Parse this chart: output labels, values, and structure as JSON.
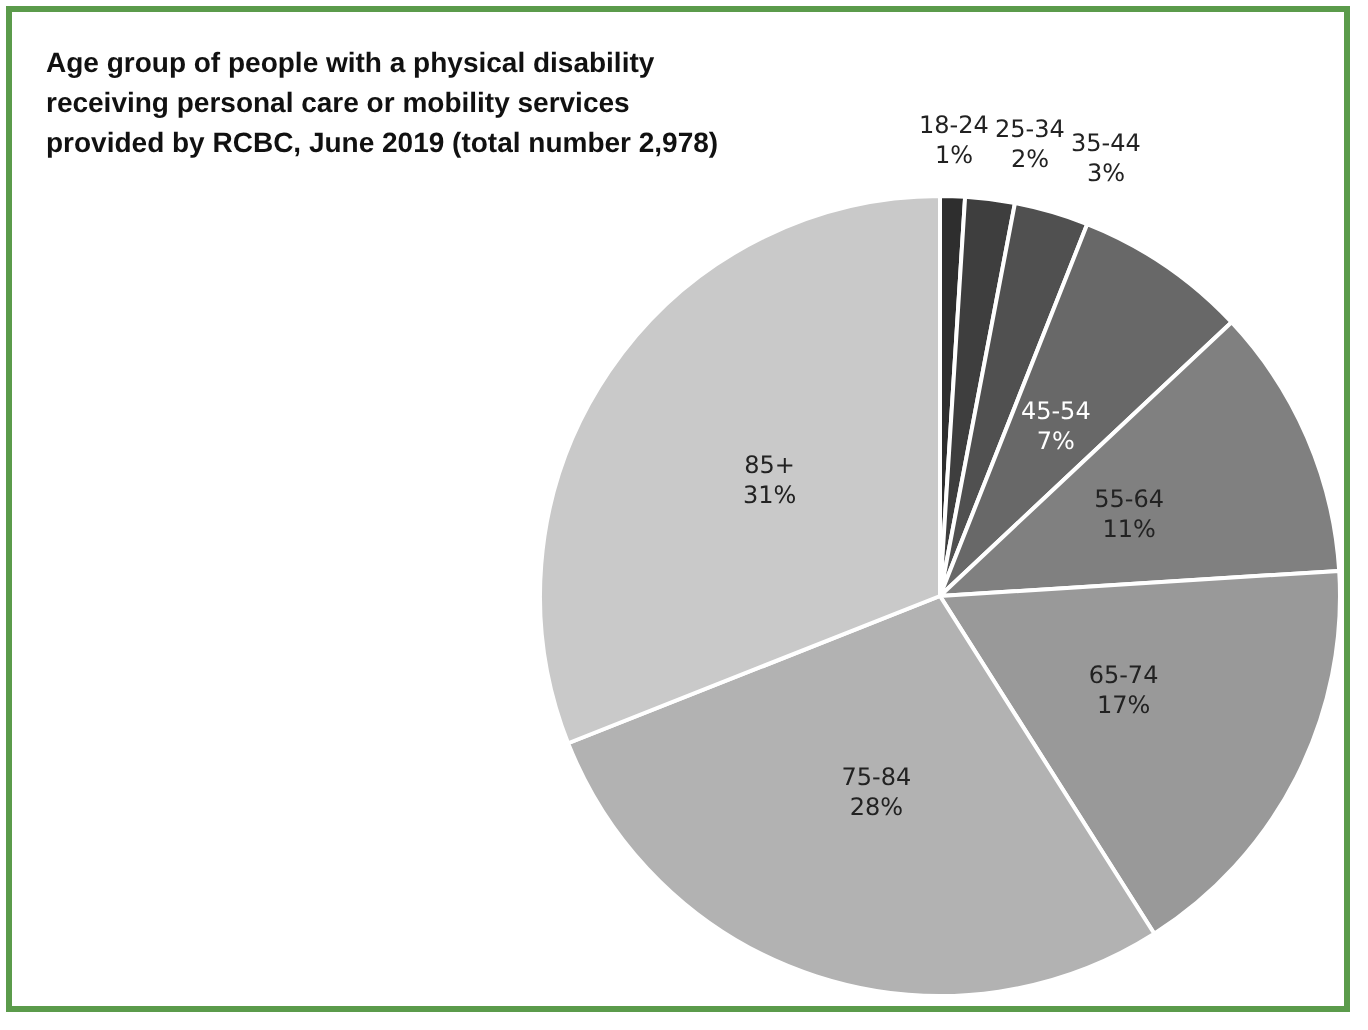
{
  "chart_data": {
    "type": "pie",
    "title": "Age group of people with a physical disability receiving personal care or mobility services provided by RCBC, June 2019 (total number 2,978)",
    "categories": [
      "18-24",
      "25-34",
      "35-44",
      "45-54",
      "55-64",
      "65-74",
      "75-84",
      "85+"
    ],
    "values": [
      1,
      2,
      3,
      7,
      11,
      17,
      28,
      31
    ],
    "value_labels": [
      "1%",
      "2%",
      "3%",
      "7%",
      "11%",
      "17%",
      "28%",
      "31%"
    ],
    "colors": [
      "#2e2e2e",
      "#3e3e3e",
      "#505050",
      "#686868",
      "#808080",
      "#999999",
      "#b2b2b2",
      "#c9c9c9"
    ],
    "legend": false
  }
}
